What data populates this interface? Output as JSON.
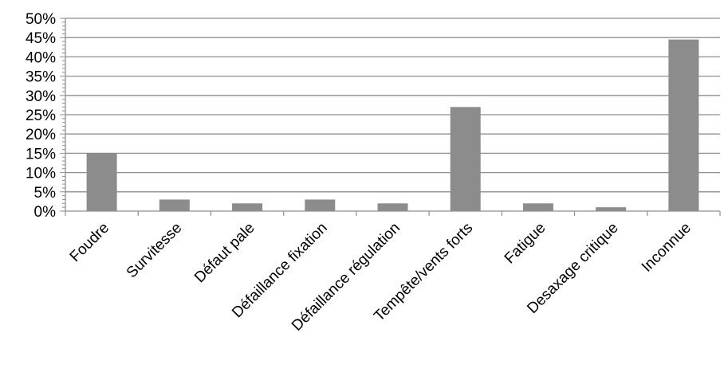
{
  "chart_data": {
    "type": "bar",
    "title": "",
    "xlabel": "",
    "ylabel": "",
    "categories": [
      "Foudre",
      "Survitesse",
      "Défaut pale",
      "Défaillance fixation",
      "Défaillance régulation",
      "Tempête/vents forts",
      "Fatigue",
      "Desaxage critique",
      "Inconnue"
    ],
    "values": [
      15,
      3,
      2,
      3,
      2,
      27,
      2,
      1,
      44.5
    ],
    "y_ticks": [
      "0%",
      "5%",
      "10%",
      "15%",
      "20%",
      "25%",
      "30%",
      "35%",
      "40%",
      "45%",
      "50%"
    ],
    "ylim": [
      0,
      50
    ],
    "unit": "%",
    "grid": true,
    "legend": "none",
    "colors": {
      "bar": "#8c8c8c",
      "grid": "#8f8f8f",
      "axis": "#8f8f8f"
    }
  }
}
